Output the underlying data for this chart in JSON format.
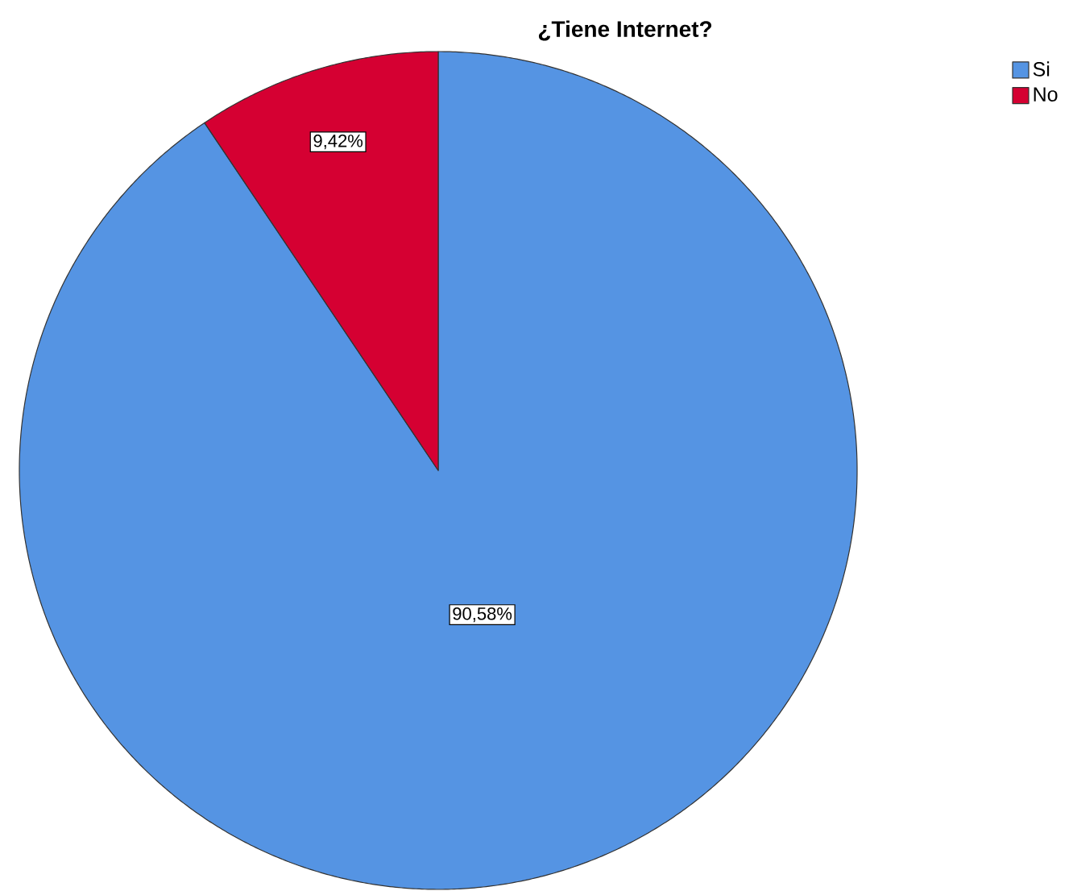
{
  "chart_data": {
    "type": "pie",
    "title": "¿Tiene Internet?",
    "categories": [
      "Si",
      "No"
    ],
    "values": [
      90.58,
      9.42
    ],
    "colors": [
      "#5594e3",
      "#d50032"
    ],
    "value_labels": [
      "90,58%",
      "9,42%"
    ],
    "legend": "top right"
  }
}
